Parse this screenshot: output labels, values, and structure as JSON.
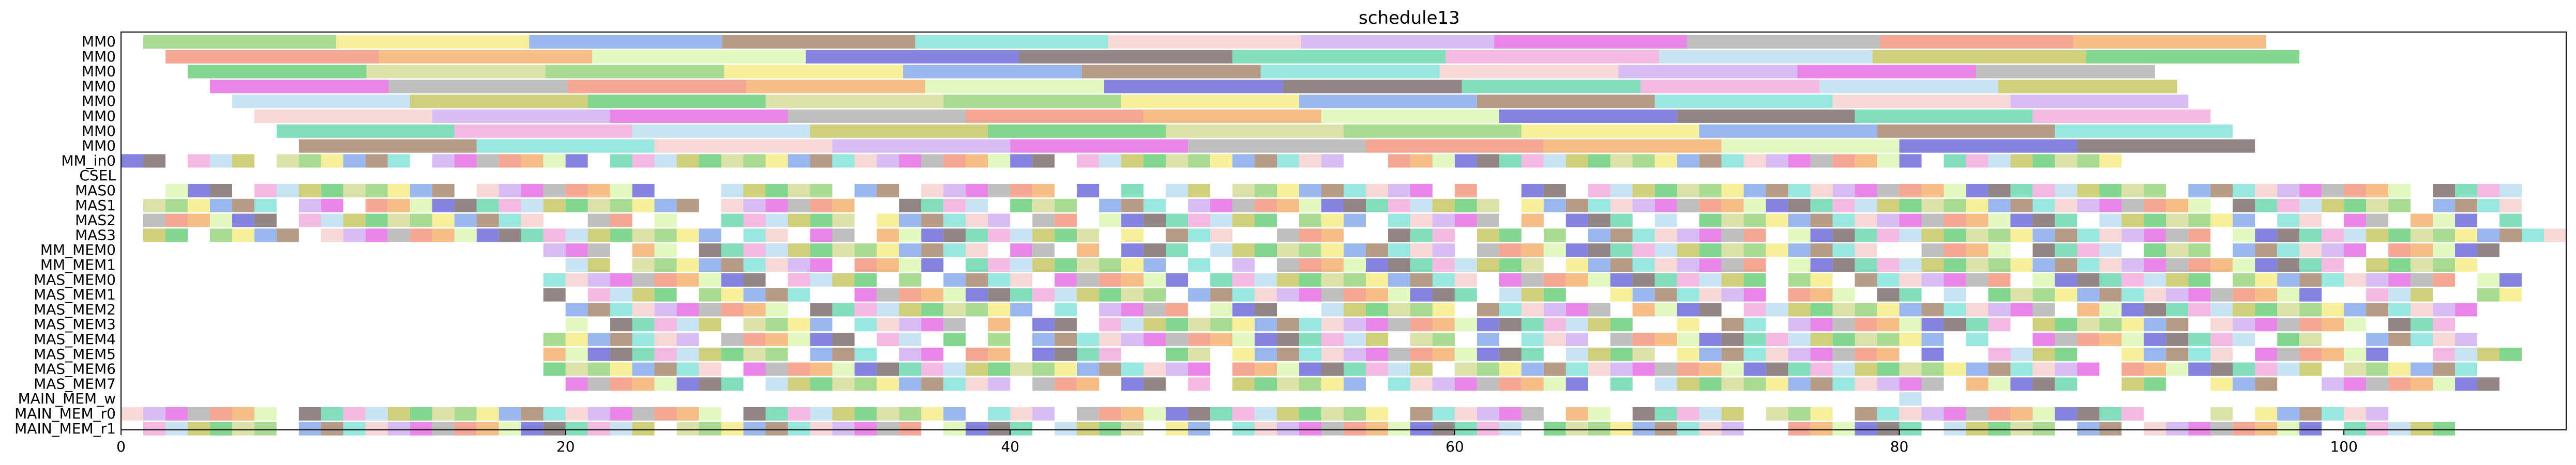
{
  "chart_data": {
    "type": "gantt",
    "title": "schedule13",
    "xlabel": "",
    "ylabel": "",
    "xlim": [
      0,
      110
    ],
    "x_ticks": [
      0,
      20,
      40,
      60,
      80,
      100
    ],
    "grid": false,
    "lanes": [
      "MM0",
      "MM0",
      "MM0",
      "MM0",
      "MM0",
      "MM0",
      "MM0",
      "MM0",
      "MM_in0",
      "CSEL",
      "MAS0",
      "MAS1",
      "MAS2",
      "MAS3",
      "MM_MEM0",
      "MM_MEM1",
      "MAS_MEM0",
      "MAS_MEM1",
      "MAS_MEM2",
      "MAS_MEM3",
      "MAS_MEM4",
      "MAS_MEM5",
      "MAS_MEM6",
      "MAS_MEM7",
      "MAIN_MEM_w",
      "MAIN_MEM_r0",
      "MAIN_MEM_r1"
    ],
    "lane_spans": [
      {
        "lane": 0,
        "start": 1,
        "end": 96.5,
        "segments": 11
      },
      {
        "lane": 1,
        "start": 2,
        "end": 98,
        "segments": 10
      },
      {
        "lane": 2,
        "start": 3,
        "end": 91.5,
        "segments": 11
      },
      {
        "lane": 3,
        "start": 4,
        "end": 92.5,
        "segments": 11
      },
      {
        "lane": 4,
        "start": 5,
        "end": 93,
        "segments": 11
      },
      {
        "lane": 5,
        "start": 6,
        "end": 94,
        "segments": 11
      },
      {
        "lane": 6,
        "start": 7,
        "end": 95,
        "segments": 11
      },
      {
        "lane": 7,
        "start": 8,
        "end": 96,
        "segments": 11
      },
      {
        "lane": 8,
        "start": 0,
        "end": 90,
        "segments": 90
      },
      {
        "lane": 10,
        "start": 1,
        "end": 108,
        "segments": 107
      },
      {
        "lane": 11,
        "start": 1,
        "end": 109,
        "segments": 108
      },
      {
        "lane": 12,
        "start": 1,
        "end": 108,
        "segments": 107
      },
      {
        "lane": 13,
        "start": 1,
        "end": 110,
        "segments": 109
      },
      {
        "lane": 14,
        "start": 19,
        "end": 107,
        "segments": 88
      },
      {
        "lane": 15,
        "start": 19,
        "end": 106,
        "segments": 87
      },
      {
        "lane": 16,
        "start": 19,
        "end": 108,
        "segments": 89
      },
      {
        "lane": 17,
        "start": 19,
        "end": 108,
        "segments": 89
      },
      {
        "lane": 18,
        "start": 20,
        "end": 106,
        "segments": 86
      },
      {
        "lane": 19,
        "start": 20,
        "end": 105,
        "segments": 85
      },
      {
        "lane": 20,
        "start": 19,
        "end": 106,
        "segments": 87
      },
      {
        "lane": 21,
        "start": 18,
        "end": 108,
        "segments": 90
      },
      {
        "lane": 22,
        "start": 19,
        "end": 106,
        "segments": 87
      },
      {
        "lane": 23,
        "start": 20,
        "end": 107,
        "segments": 87
      },
      {
        "lane": 24,
        "start": 80,
        "end": 81,
        "segments": 1
      },
      {
        "lane": 25,
        "start": 0,
        "end": 102,
        "segments": 102
      },
      {
        "lane": 26,
        "start": 0,
        "end": 105,
        "segments": 105
      }
    ],
    "palette": [
      "#8ecf6e",
      "#9e7a5f",
      "#c9a7ef",
      "#f08b70",
      "#5b5bd6",
      "#f1a3d9",
      "#59c86b",
      "#f6e978",
      "#77e0d5",
      "#e15ee0",
      "#f3a85f",
      "#6c5c5c",
      "#b5d9f0",
      "#cfd98e",
      "#78a0e8",
      "#f5c9c9",
      "#a9a9a9",
      "#d7f5a8",
      "#5ad3a8",
      "#c0c050"
    ]
  }
}
